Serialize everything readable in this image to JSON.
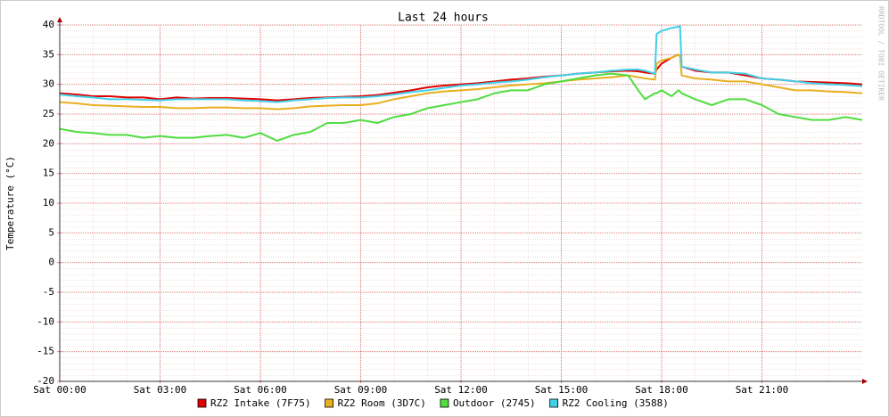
{
  "chart_data": {
    "type": "line",
    "title": "Last 24 hours",
    "y_label": "Temperature (°C)",
    "watermark": "RRDTOOL / TOBI OETIKER",
    "x": [
      0,
      0.5,
      1,
      1.5,
      2,
      2.5,
      3,
      3.5,
      4,
      4.5,
      5,
      5.5,
      6,
      6.5,
      7,
      7.5,
      8,
      8.5,
      9,
      9.5,
      10,
      10.5,
      11,
      11.5,
      12,
      12.5,
      13,
      13.5,
      14,
      14.5,
      15,
      15.5,
      16,
      16.5,
      17,
      17.3,
      17.5,
      17.8,
      17.85,
      18,
      18.3,
      18.5,
      18.55,
      18.6,
      19,
      19.5,
      20,
      20.5,
      21,
      21.5,
      22,
      22.5,
      23,
      23.5,
      24
    ],
    "xlim": [
      0,
      24
    ],
    "xticks": [
      {
        "value": 0,
        "label": "Sat 00:00"
      },
      {
        "value": 3,
        "label": "Sat 03:00"
      },
      {
        "value": 6,
        "label": "Sat 06:00"
      },
      {
        "value": 9,
        "label": "Sat 09:00"
      },
      {
        "value": 12,
        "label": "Sat 12:00"
      },
      {
        "value": 15,
        "label": "Sat 15:00"
      },
      {
        "value": 18,
        "label": "Sat 18:00"
      },
      {
        "value": 21,
        "label": "Sat 21:00"
      }
    ],
    "ylim": [
      -20,
      40
    ],
    "yticks": [
      -20,
      -15,
      -10,
      -5,
      0,
      5,
      10,
      15,
      20,
      25,
      30,
      35,
      40
    ],
    "grid": true,
    "legend": "bottom",
    "series": [
      {
        "name": "RZ2 Intake (7F75)",
        "color": "#e00000",
        "values": [
          28.5,
          28.3,
          28,
          28,
          27.8,
          27.8,
          27.5,
          27.8,
          27.6,
          27.7,
          27.7,
          27.6,
          27.5,
          27.3,
          27.5,
          27.7,
          27.8,
          27.9,
          28,
          28.2,
          28.6,
          29,
          29.5,
          29.8,
          30,
          30.2,
          30.5,
          30.8,
          31,
          31.3,
          31.5,
          31.8,
          32,
          32.2,
          32.3,
          32.2,
          32,
          31.8,
          32.5,
          33.5,
          34.5,
          35,
          34.8,
          33,
          32.3,
          32,
          32,
          31.5,
          31,
          30.8,
          30.5,
          30.4,
          30.3,
          30.2,
          30
        ]
      },
      {
        "name": "RZ2 Room (3D7C)",
        "color": "#e8b020",
        "values": [
          27,
          26.8,
          26.5,
          26.4,
          26.3,
          26.2,
          26.2,
          26,
          26,
          26.1,
          26.1,
          26,
          26,
          25.8,
          26,
          26.3,
          26.4,
          26.5,
          26.5,
          26.8,
          27.5,
          28,
          28.5,
          28.8,
          29,
          29.2,
          29.5,
          29.8,
          30,
          30.2,
          30.5,
          30.8,
          31,
          31.2,
          31.5,
          31.2,
          31,
          30.8,
          33.5,
          34,
          34.5,
          35,
          34.8,
          31.5,
          31,
          30.8,
          30.5,
          30.5,
          30,
          29.5,
          29,
          29,
          28.8,
          28.7,
          28.5
        ]
      },
      {
        "name": "Outdoor (2745)",
        "color": "#50dd40",
        "values": [
          22.5,
          22,
          21.8,
          21.5,
          21.5,
          21,
          21.3,
          21,
          21,
          21.3,
          21.5,
          21,
          21.8,
          20.5,
          21.5,
          22,
          23.5,
          23.5,
          24,
          23.5,
          24.5,
          25,
          26,
          26.5,
          27,
          27.5,
          28.5,
          29,
          29,
          30,
          30.5,
          31,
          31.5,
          31.8,
          31.5,
          29,
          27.5,
          28.5,
          28.5,
          29,
          28,
          29,
          28.8,
          28.5,
          27.5,
          26.5,
          27.5,
          27.5,
          26.5,
          25,
          24.5,
          24,
          24,
          24.5,
          24
        ]
      },
      {
        "name": "RZ2 Cooling (3588)",
        "color": "#40d0e8",
        "values": [
          28.3,
          28,
          27.8,
          27.5,
          27.5,
          27.4,
          27.3,
          27.5,
          27.5,
          27.5,
          27.5,
          27.3,
          27.2,
          27,
          27.3,
          27.5,
          27.7,
          27.8,
          27.8,
          28,
          28.3,
          28.7,
          29,
          29.4,
          29.8,
          30,
          30.3,
          30.5,
          30.8,
          31.2,
          31.5,
          31.8,
          32,
          32.3,
          32.5,
          32.5,
          32.3,
          31.8,
          38.5,
          39,
          39.5,
          39.7,
          39.8,
          33,
          32.5,
          32,
          32,
          31.8,
          31,
          30.8,
          30.5,
          30.2,
          30,
          29.9,
          29.7
        ]
      }
    ]
  }
}
